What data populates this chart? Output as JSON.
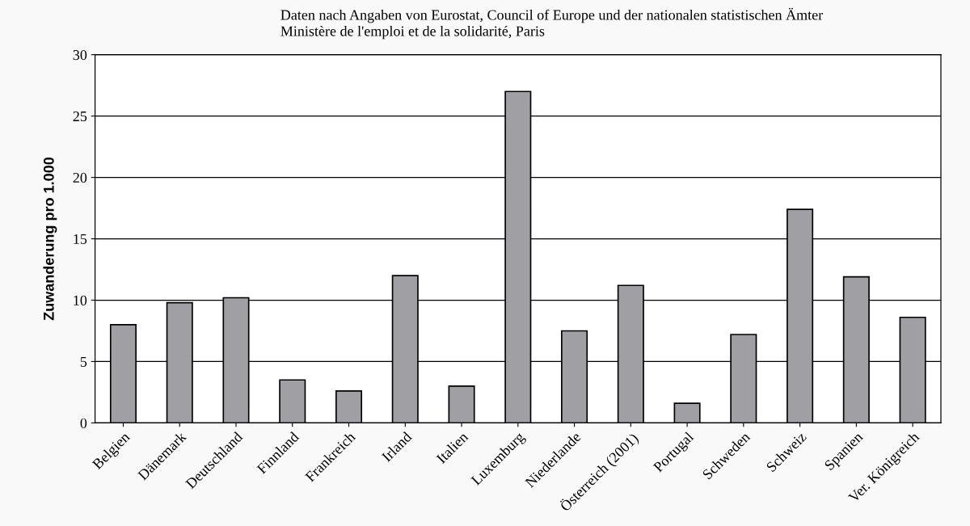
{
  "chart_data": {
    "type": "bar",
    "ylabel": "Zuwanderung pro 1.000",
    "annotations": [
      "Daten nach Angaben von Eurostat, Council of Europe und der nationalen statistischen Ämter",
      "Ministère de l'emploi et de la solidarité, Paris"
    ],
    "categories": [
      "Belgien",
      "Dänemark",
      "Deutschland",
      "Finnland",
      "Frankreich",
      "Irland",
      "Italien",
      "Luxemburg",
      "Niederlande",
      "Österreich (2001)",
      "Portugal",
      "Schweden",
      "Schweiz",
      "Spanien",
      "Ver. Königreich"
    ],
    "values": [
      8.0,
      9.8,
      10.2,
      3.5,
      2.6,
      12.0,
      3.0,
      27.0,
      7.5,
      11.2,
      1.6,
      7.2,
      17.4,
      11.9,
      8.6
    ],
    "color": "#a0a0a4",
    "ylim": [
      0,
      30
    ],
    "yticks": [
      0,
      5,
      10,
      15,
      20,
      25,
      30
    ],
    "grid": "y"
  }
}
